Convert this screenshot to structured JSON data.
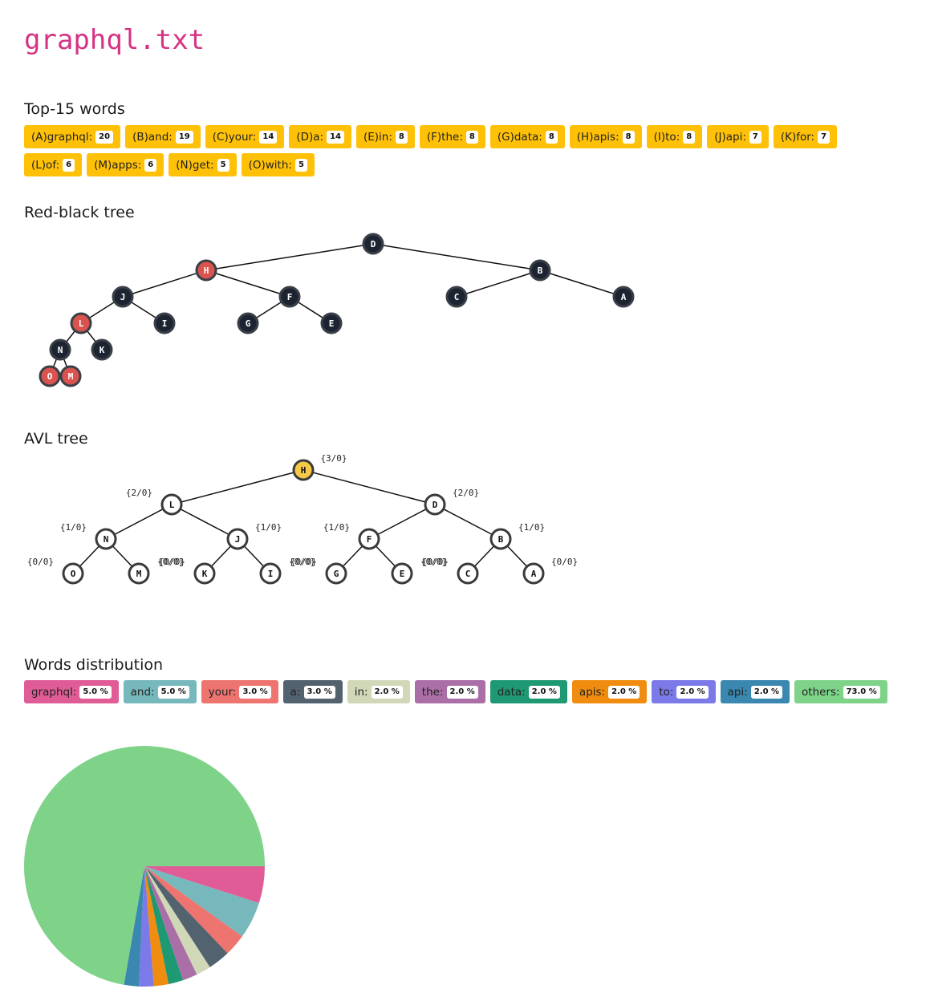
{
  "page": {
    "title": "graphql.txt"
  },
  "sections": {
    "top_words": "Top-15 words",
    "rb_tree": "Red-black tree",
    "avl_tree": "AVL tree",
    "distribution": "Words distribution"
  },
  "top_words": [
    {
      "label": "(A)graphql:",
      "count": "20"
    },
    {
      "label": "(B)and:",
      "count": "19"
    },
    {
      "label": "(C)your:",
      "count": "14"
    },
    {
      "label": "(D)a:",
      "count": "14"
    },
    {
      "label": "(E)in:",
      "count": "8"
    },
    {
      "label": "(F)the:",
      "count": "8"
    },
    {
      "label": "(G)data:",
      "count": "8"
    },
    {
      "label": "(H)apis:",
      "count": "8"
    },
    {
      "label": "(I)to:",
      "count": "8"
    },
    {
      "label": "(J)api:",
      "count": "7"
    },
    {
      "label": "(K)for:",
      "count": "7"
    },
    {
      "label": "(L)of:",
      "count": "6"
    },
    {
      "label": "(M)apps:",
      "count": "6"
    },
    {
      "label": "(N)get:",
      "count": "5"
    },
    {
      "label": "(O)with:",
      "count": "5"
    }
  ],
  "rb_tree": {
    "colors": {
      "red": "#d9534f",
      "black": "#1c2431"
    },
    "nodes": [
      {
        "id": "D",
        "color": "black",
        "parent": null
      },
      {
        "id": "H",
        "color": "red",
        "parent": "D"
      },
      {
        "id": "B",
        "color": "black",
        "parent": "D"
      },
      {
        "id": "J",
        "color": "black",
        "parent": "H"
      },
      {
        "id": "F",
        "color": "black",
        "parent": "H"
      },
      {
        "id": "C",
        "color": "black",
        "parent": "B"
      },
      {
        "id": "A",
        "color": "black",
        "parent": "B"
      },
      {
        "id": "L",
        "color": "red",
        "parent": "J"
      },
      {
        "id": "I",
        "color": "black",
        "parent": "J"
      },
      {
        "id": "G",
        "color": "black",
        "parent": "F"
      },
      {
        "id": "E",
        "color": "black",
        "parent": "F"
      },
      {
        "id": "N",
        "color": "black",
        "parent": "L"
      },
      {
        "id": "K",
        "color": "black",
        "parent": "L"
      },
      {
        "id": "O",
        "color": "red",
        "parent": "N"
      },
      {
        "id": "M",
        "color": "red",
        "parent": "N"
      }
    ]
  },
  "avl_tree": {
    "colors": {
      "root_fill": "#f7c948",
      "node_fill": "#ffffff",
      "stroke": "#3a3a3a"
    },
    "nodes": [
      {
        "id": "H",
        "parent": null,
        "balance": "{3/0}",
        "root": true
      },
      {
        "id": "L",
        "parent": "H",
        "balance": "{2/0}"
      },
      {
        "id": "D",
        "parent": "H",
        "balance": "{2/0}"
      },
      {
        "id": "N",
        "parent": "L",
        "balance": "{1/0}"
      },
      {
        "id": "J",
        "parent": "L",
        "balance": "{1/0}"
      },
      {
        "id": "F",
        "parent": "D",
        "balance": "{1/0}"
      },
      {
        "id": "B",
        "parent": "D",
        "balance": "{1/0}"
      },
      {
        "id": "O",
        "parent": "N",
        "balance": "{0/0}"
      },
      {
        "id": "M",
        "parent": "N",
        "balance": "{0/0}"
      },
      {
        "id": "K",
        "parent": "J",
        "balance": "{0/0}"
      },
      {
        "id": "I",
        "parent": "J",
        "balance": "{0/0}"
      },
      {
        "id": "G",
        "parent": "F",
        "balance": "{0/0}"
      },
      {
        "id": "E",
        "parent": "F",
        "balance": "{0/0}"
      },
      {
        "id": "C",
        "parent": "B",
        "balance": "{0/0}"
      },
      {
        "id": "A",
        "parent": "B",
        "balance": "{0/0}"
      }
    ]
  },
  "distribution": [
    {
      "label": "graphql:",
      "pct": "5.0 %",
      "value": 5,
      "color": "#e05c97"
    },
    {
      "label": "and:",
      "pct": "5.0 %",
      "value": 5,
      "color": "#76b8bb"
    },
    {
      "label": "your:",
      "pct": "3.0 %",
      "value": 3,
      "color": "#ee7470"
    },
    {
      "label": "a:",
      "pct": "3.0 %",
      "value": 3,
      "color": "#52636f"
    },
    {
      "label": "in:",
      "pct": "2.0 %",
      "value": 2,
      "color": "#d1d8b8"
    },
    {
      "label": "the:",
      "pct": "2.0 %",
      "value": 2,
      "color": "#ab6fa8"
    },
    {
      "label": "data:",
      "pct": "2.0 %",
      "value": 2,
      "color": "#1f9874"
    },
    {
      "label": "apis:",
      "pct": "2.0 %",
      "value": 2,
      "color": "#f08c0f"
    },
    {
      "label": "to:",
      "pct": "2.0 %",
      "value": 2,
      "color": "#7b7ae8"
    },
    {
      "label": "api:",
      "pct": "2.0 %",
      "value": 2,
      "color": "#3a87b0"
    },
    {
      "label": "others:",
      "pct": "73.0 %",
      "value": 73,
      "color": "#7ed389"
    }
  ],
  "chart_data": {
    "type": "pie",
    "categories": [
      "graphql",
      "and",
      "your",
      "a",
      "in",
      "the",
      "data",
      "apis",
      "to",
      "api",
      "others"
    ],
    "values": [
      5.0,
      5.0,
      3.0,
      3.0,
      2.0,
      2.0,
      2.0,
      2.0,
      2.0,
      2.0,
      73.0
    ]
  }
}
